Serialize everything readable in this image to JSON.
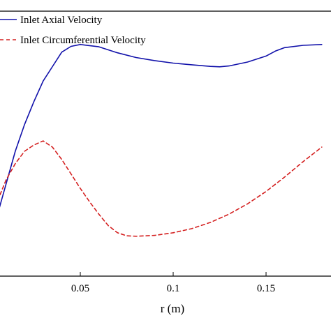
{
  "chart_data": {
    "type": "line",
    "xlabel": "r (m)",
    "ylabel": "",
    "title": "",
    "xlim": [
      0,
      0.18
    ],
    "ylim": [
      0,
      1
    ],
    "grid": false,
    "legend_position": "top-left",
    "x_ticks": [
      {
        "value": 0.05,
        "label": "0.05"
      },
      {
        "value": 0.1,
        "label": "0.1"
      },
      {
        "value": 0.15,
        "label": "0.15"
      }
    ],
    "series": [
      {
        "name": "Inlet Axial Velocity",
        "color": "#1111aa",
        "dash": "solid",
        "x": [
          0.0,
          0.005,
          0.01,
          0.015,
          0.02,
          0.025,
          0.03,
          0.035,
          0.04,
          0.045,
          0.05,
          0.06,
          0.07,
          0.08,
          0.09,
          0.1,
          0.11,
          0.12,
          0.125,
          0.13,
          0.14,
          0.15,
          0.155,
          0.16,
          0.17,
          0.18
        ],
        "y": [
          0.06,
          0.15,
          0.31,
          0.47,
          0.6,
          0.71,
          0.81,
          0.88,
          0.95,
          0.978,
          0.987,
          0.976,
          0.947,
          0.924,
          0.909,
          0.897,
          0.889,
          0.881,
          0.879,
          0.883,
          0.902,
          0.931,
          0.955,
          0.972,
          0.983,
          0.987
        ]
      },
      {
        "name": "Inlet Circumferential Velocity",
        "color": "#d42020",
        "dash": "dashed",
        "x": [
          0.0,
          0.005,
          0.01,
          0.015,
          0.02,
          0.025,
          0.03,
          0.035,
          0.04,
          0.045,
          0.05,
          0.055,
          0.06,
          0.065,
          0.07,
          0.075,
          0.08,
          0.09,
          0.1,
          0.11,
          0.12,
          0.13,
          0.14,
          0.15,
          0.16,
          0.17,
          0.18
        ],
        "y": [
          0.12,
          0.22,
          0.33,
          0.41,
          0.47,
          0.5,
          0.52,
          0.49,
          0.43,
          0.36,
          0.29,
          0.225,
          0.165,
          0.11,
          0.075,
          0.06,
          0.058,
          0.062,
          0.075,
          0.095,
          0.125,
          0.165,
          0.215,
          0.275,
          0.345,
          0.42,
          0.49
        ]
      }
    ]
  }
}
